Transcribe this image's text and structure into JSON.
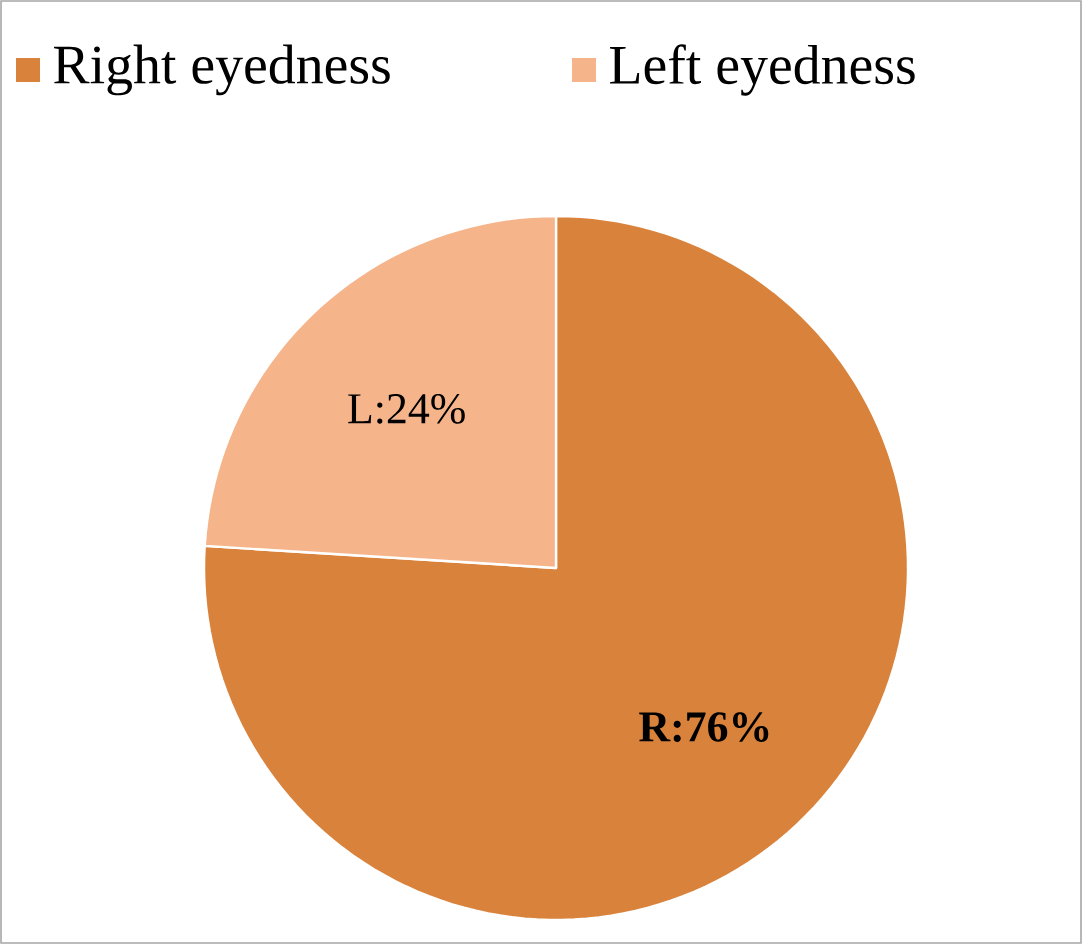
{
  "chart_data": {
    "type": "pie",
    "categories": [
      "Right eyedness",
      "Left eyedness"
    ],
    "values": [
      76,
      24
    ],
    "colors": [
      "#d9823b",
      "#f5b48a"
    ],
    "value_labels": [
      "**R:76%**",
      "L:24%"
    ],
    "legend": "top"
  }
}
